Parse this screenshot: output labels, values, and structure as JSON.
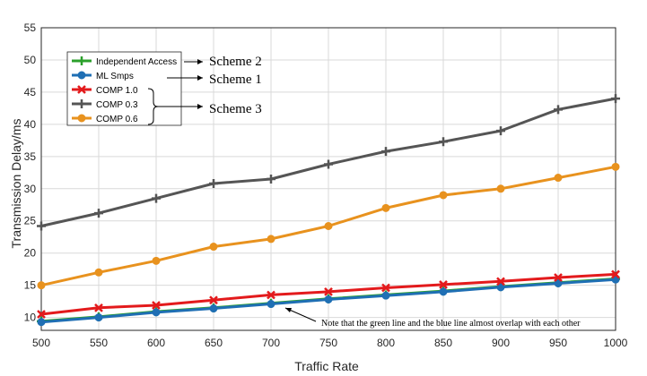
{
  "chart_data": {
    "type": "line",
    "title": "",
    "xlabel": "Traffic Rate",
    "ylabel": "Transmission Delay/ms",
    "x": [
      500,
      550,
      600,
      650,
      700,
      750,
      800,
      850,
      900,
      950,
      1000
    ],
    "xlim": [
      500,
      1000
    ],
    "ylim": [
      8,
      55
    ],
    "xticks": [
      500,
      550,
      600,
      650,
      700,
      750,
      800,
      850,
      900,
      950,
      1000
    ],
    "yticks": [
      10,
      15,
      20,
      25,
      30,
      35,
      40,
      45,
      50,
      55
    ],
    "grid": true,
    "legend_position": "top-left",
    "series": [
      {
        "name": "Independent Access",
        "color": "#2ca02c",
        "marker": "plus",
        "values": [
          9.4,
          10.1,
          10.9,
          11.5,
          12.2,
          12.9,
          13.5,
          14.1,
          14.8,
          15.4,
          16.0
        ]
      },
      {
        "name": "ML Smps",
        "color": "#1f6fb4",
        "marker": "circle",
        "values": [
          9.3,
          10.0,
          10.8,
          11.4,
          12.1,
          12.8,
          13.4,
          14.0,
          14.7,
          15.3,
          15.9
        ]
      },
      {
        "name": "COMP 1.0",
        "color": "#e31a1c",
        "marker": "x",
        "values": [
          10.5,
          11.5,
          11.9,
          12.7,
          13.5,
          14.0,
          14.6,
          15.1,
          15.6,
          16.2,
          16.7
        ]
      },
      {
        "name": "COMP 0.3",
        "color": "#555555",
        "marker": "plus",
        "values": [
          24.2,
          26.2,
          28.5,
          30.8,
          31.5,
          33.8,
          35.8,
          37.3,
          39.0,
          42.3,
          44.0
        ]
      },
      {
        "name": "COMP 0.6",
        "color": "#e8921e",
        "marker": "circle",
        "values": [
          15.0,
          17.0,
          18.8,
          21.0,
          22.2,
          24.2,
          27.0,
          29.0,
          30.0,
          31.7,
          33.4
        ]
      }
    ],
    "annotations": {
      "scheme2": "Scheme 2",
      "scheme1": "Scheme 1",
      "scheme3": "Scheme 3",
      "note": "Note that the green line and the blue line almost overlap with each other"
    }
  }
}
